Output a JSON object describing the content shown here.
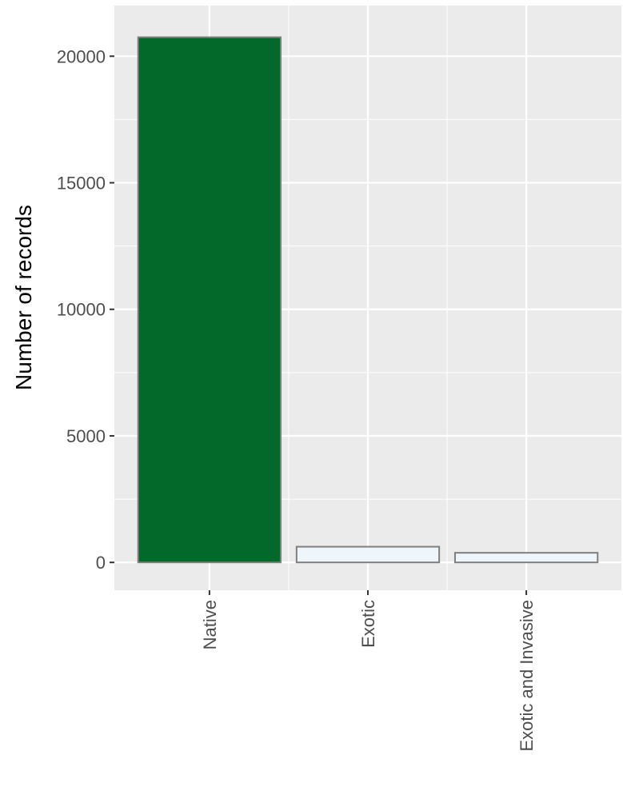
{
  "chart_data": {
    "type": "bar",
    "title": "",
    "xlabel": "",
    "ylabel": "Number of records",
    "categories": [
      "Native",
      "Exotic",
      "Exotic and Invasive"
    ],
    "values": [
      20750,
      620,
      380
    ],
    "ylim": [
      -1100,
      22000
    ],
    "yticks": [
      0,
      5000,
      10000,
      15000,
      20000
    ],
    "ytick_labels": [
      "0",
      "5000",
      "10000",
      "15000",
      "20000"
    ],
    "bar_fill_colors": [
      "#03692b",
      "#eef6fb",
      "#eef6fb"
    ],
    "bar_edge_color": "#7f7f7f",
    "panel_background": "#ebebeb",
    "gridline_color": "#ffffff",
    "grid": true,
    "legend": "none"
  }
}
